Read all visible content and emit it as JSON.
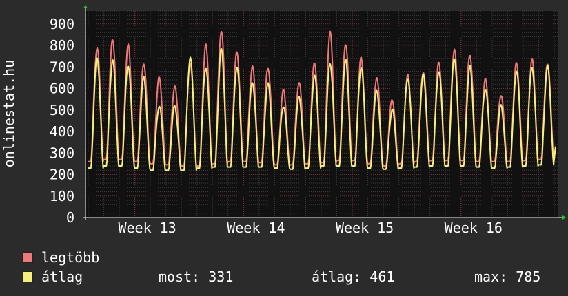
{
  "chart_data": {
    "type": "line",
    "ylabel": "onlinestat.hu",
    "ylim": [
      0,
      960
    ],
    "yticks": [
      0,
      100,
      200,
      300,
      400,
      500,
      600,
      700,
      800,
      900
    ],
    "xtick_labels": [
      "Week 13",
      "Week 14",
      "Week 15",
      "Week 16"
    ],
    "grid": true,
    "series": [
      {
        "name": "legtöbb",
        "color": "#f07878",
        "daily": [
          {
            "min": 260,
            "max": 790
          },
          {
            "min": 270,
            "max": 830
          },
          {
            "min": 270,
            "max": 800
          },
          {
            "min": 260,
            "max": 720
          },
          {
            "min": 250,
            "max": 650
          },
          {
            "min": 245,
            "max": 610
          },
          {
            "min": 240,
            "max": 720
          },
          {
            "min": 240,
            "max": 800
          },
          {
            "min": 250,
            "max": 870
          },
          {
            "min": 260,
            "max": 770
          },
          {
            "min": 260,
            "max": 700
          },
          {
            "min": 255,
            "max": 700
          },
          {
            "min": 245,
            "max": 590
          },
          {
            "min": 245,
            "max": 630
          },
          {
            "min": 250,
            "max": 720
          },
          {
            "min": 255,
            "max": 860
          },
          {
            "min": 265,
            "max": 810
          },
          {
            "min": 265,
            "max": 740
          },
          {
            "min": 250,
            "max": 650
          },
          {
            "min": 240,
            "max": 550
          },
          {
            "min": 250,
            "max": 660
          },
          {
            "min": 260,
            "max": 680
          },
          {
            "min": 265,
            "max": 720
          },
          {
            "min": 265,
            "max": 780
          },
          {
            "min": 265,
            "max": 760
          },
          {
            "min": 260,
            "max": 640
          },
          {
            "min": 260,
            "max": 570
          },
          {
            "min": 260,
            "max": 720
          },
          {
            "min": 265,
            "max": 735
          },
          {
            "min": 270,
            "max": 720
          }
        ]
      },
      {
        "name": "átlag",
        "color": "#f6f07a",
        "daily": [
          {
            "min": 230,
            "max": 740
          },
          {
            "min": 240,
            "max": 730
          },
          {
            "min": 240,
            "max": 710
          },
          {
            "min": 230,
            "max": 650
          },
          {
            "min": 220,
            "max": 520
          },
          {
            "min": 220,
            "max": 520
          },
          {
            "min": 220,
            "max": 740
          },
          {
            "min": 230,
            "max": 700
          },
          {
            "min": 235,
            "max": 780
          },
          {
            "min": 235,
            "max": 700
          },
          {
            "min": 235,
            "max": 630
          },
          {
            "min": 235,
            "max": 620
          },
          {
            "min": 230,
            "max": 520
          },
          {
            "min": 225,
            "max": 560
          },
          {
            "min": 230,
            "max": 660
          },
          {
            "min": 240,
            "max": 720
          },
          {
            "min": 240,
            "max": 730
          },
          {
            "min": 240,
            "max": 700
          },
          {
            "min": 230,
            "max": 590
          },
          {
            "min": 225,
            "max": 500
          },
          {
            "min": 230,
            "max": 650
          },
          {
            "min": 235,
            "max": 660
          },
          {
            "min": 240,
            "max": 680
          },
          {
            "min": 240,
            "max": 740
          },
          {
            "min": 240,
            "max": 700
          },
          {
            "min": 235,
            "max": 600
          },
          {
            "min": 230,
            "max": 520
          },
          {
            "min": 235,
            "max": 680
          },
          {
            "min": 240,
            "max": 700
          },
          {
            "min": 245,
            "max": 700
          }
        ]
      }
    ],
    "end_value": 331,
    "legend_position": "bottom-left"
  },
  "legend": {
    "max_label": "legtöbb",
    "avg_label": "átlag",
    "max_color": "#f07878",
    "avg_color": "#f6f07a"
  },
  "stats": {
    "now": "most: 331",
    "avg": "átlag: 461",
    "max": "max: 785"
  }
}
